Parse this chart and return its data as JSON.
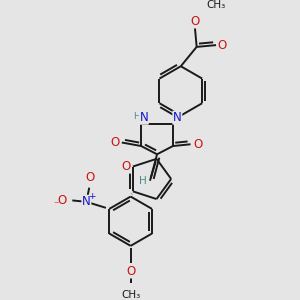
{
  "background_color": "#e5e5e5",
  "bond_color": "#1a1a1a",
  "bond_width": 1.4,
  "atom_colors": {
    "N": "#1414cc",
    "O": "#cc1414",
    "H": "#4a8a8a",
    "C": "#1a1a1a"
  },
  "font_size_atom": 7.5,
  "fig_width": 3.0,
  "fig_height": 3.0
}
